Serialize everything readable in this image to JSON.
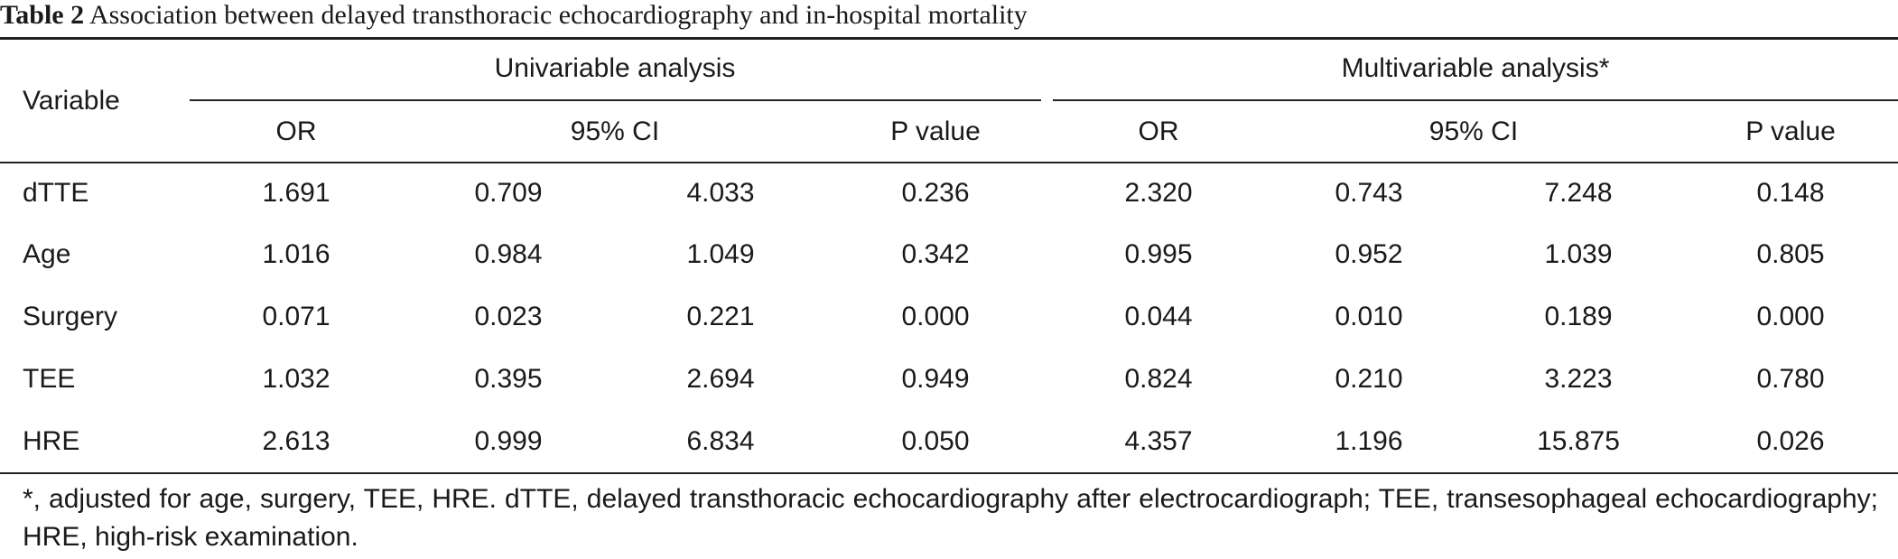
{
  "caption": {
    "label": "Table 2",
    "text": "Association between delayed transthoracic echocardiography and in-hospital mortality"
  },
  "headers": {
    "variable": "Variable",
    "univariable": "Univariable analysis",
    "multivariable": "Multivariable analysis*",
    "or_uni": "OR",
    "ci_uni": "95% CI",
    "p_uni": "P value",
    "or_multi": "OR",
    "ci_multi": "95% CI",
    "p_multi": "P value"
  },
  "rows": [
    {
      "variable": "dTTE",
      "uni_or": "1.691",
      "uni_ci_low": "0.709",
      "uni_ci_high": "4.033",
      "uni_p": "0.236",
      "multi_or": "2.320",
      "multi_ci_low": "0.743",
      "multi_ci_high": "7.248",
      "multi_p": "0.148"
    },
    {
      "variable": "Age",
      "uni_or": "1.016",
      "uni_ci_low": "0.984",
      "uni_ci_high": "1.049",
      "uni_p": "0.342",
      "multi_or": "0.995",
      "multi_ci_low": "0.952",
      "multi_ci_high": "1.039",
      "multi_p": "0.805"
    },
    {
      "variable": "Surgery",
      "uni_or": "0.071",
      "uni_ci_low": "0.023",
      "uni_ci_high": "0.221",
      "uni_p": "0.000",
      "multi_or": "0.044",
      "multi_ci_low": "0.010",
      "multi_ci_high": "0.189",
      "multi_p": "0.000"
    },
    {
      "variable": "TEE",
      "uni_or": "1.032",
      "uni_ci_low": "0.395",
      "uni_ci_high": "2.694",
      "uni_p": "0.949",
      "multi_or": "0.824",
      "multi_ci_low": "0.210",
      "multi_ci_high": "3.223",
      "multi_p": "0.780"
    },
    {
      "variable": "HRE",
      "uni_or": "2.613",
      "uni_ci_low": "0.999",
      "uni_ci_high": "6.834",
      "uni_p": "0.050",
      "multi_or": "4.357",
      "multi_ci_low": "1.196",
      "multi_ci_high": "15.875",
      "multi_p": "0.026"
    }
  ],
  "footnote": "*, adjusted for age, surgery, TEE, HRE. dTTE, delayed transthoracic echocardiography after electrocardiograph; TEE, transesophageal echocardiography; HRE, high-risk examination."
}
